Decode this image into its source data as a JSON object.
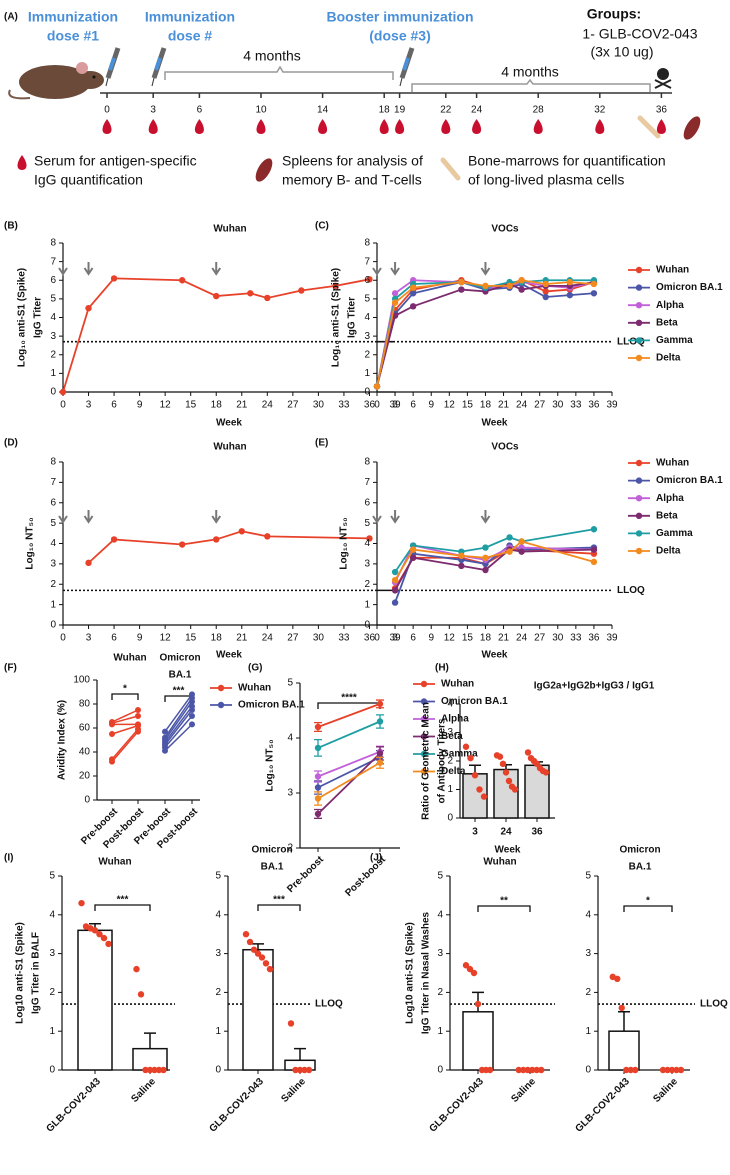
{
  "timeline": {
    "panel": "(A)",
    "doses": [
      [
        "Immunization",
        "dose #1"
      ],
      [
        "Immunization",
        "dose #"
      ],
      [
        "Booster immunization",
        "(dose #3)"
      ]
    ],
    "groups": [
      "Groups:",
      "1- GLB-COV2-043",
      "(3x 10 ug)"
    ],
    "intervals": [
      "4 months",
      "4 months"
    ],
    "weeks": [
      0,
      3,
      6,
      10,
      14,
      18,
      19,
      22,
      24,
      28,
      32,
      36
    ],
    "legend": [
      [
        "Serum  for antigen-specific",
        "IgG quantification"
      ],
      [
        "Spleens for analysis of",
        "memory B- and T-cells"
      ],
      [
        "Bone-marrows for quantification",
        "of long-lived plasma cells"
      ]
    ]
  },
  "chart_data": [
    {
      "type": "line",
      "panel": "(B)",
      "title": "Wuhan",
      "ylabel": [
        "Log₁₀ anti-S1 (Spike)",
        "IgG Titer"
      ],
      "xlabel": "Week",
      "x": [
        0,
        3,
        6,
        14,
        18,
        22,
        24,
        28,
        32,
        36
      ],
      "values": [
        0,
        4.5,
        6.1,
        6.0,
        5.15,
        5.3,
        5.05,
        5.45,
        5.7,
        6.05
      ],
      "color": "#e8412a",
      "xlim": [
        0,
        39
      ],
      "ylim": [
        0,
        8
      ],
      "xticks": [
        0,
        3,
        6,
        9,
        12,
        15,
        18,
        21,
        24,
        27,
        30,
        33,
        36,
        39
      ],
      "yticks": [
        0,
        1,
        2,
        3,
        4,
        5,
        6,
        7,
        8
      ],
      "lloq": 2.7,
      "arrows": [
        0,
        3,
        18
      ]
    },
    {
      "type": "line",
      "panel": "(C)",
      "title": "VOCs",
      "ylabel": [
        "Log₁₀ anti-S1 (Spike)",
        "IgG Titer"
      ],
      "xlabel": "Week",
      "x": [
        0,
        3,
        6,
        14,
        18,
        22,
        24,
        28,
        32,
        36
      ],
      "series": [
        {
          "name": "Wuhan",
          "color": "#e8412a",
          "values": [
            0.3,
            4.4,
            5.5,
            6.0,
            5.6,
            5.8,
            6.0,
            5.4,
            5.5,
            5.9
          ]
        },
        {
          "name": "Omicron BA.1",
          "color": "#4b56a8",
          "values": [
            0.3,
            4.2,
            5.3,
            5.9,
            5.5,
            5.6,
            5.8,
            5.1,
            5.2,
            5.3
          ]
        },
        {
          "name": "Alpha",
          "color": "#c160d8",
          "values": [
            0.3,
            5.3,
            6.0,
            5.9,
            5.6,
            5.7,
            5.9,
            5.7,
            5.6,
            5.9
          ]
        },
        {
          "name": "Beta",
          "color": "#7d2b6f",
          "values": [
            0.3,
            4.1,
            4.6,
            5.5,
            5.4,
            5.8,
            5.5,
            5.7,
            5.7,
            5.9
          ]
        },
        {
          "name": "Gamma",
          "color": "#1e9ea3",
          "values": [
            0.3,
            5.0,
            5.8,
            5.9,
            5.6,
            5.9,
            5.9,
            6.0,
            6.0,
            6.0
          ]
        },
        {
          "name": "Delta",
          "color": "#f28a1e",
          "values": [
            0.3,
            4.8,
            5.6,
            5.9,
            5.7,
            5.7,
            6.0,
            5.8,
            5.9,
            5.8
          ]
        }
      ],
      "xlim": [
        0,
        39
      ],
      "ylim": [
        0,
        8
      ],
      "xticks": [
        0,
        3,
        6,
        9,
        12,
        15,
        18,
        21,
        24,
        27,
        30,
        33,
        36,
        39
      ],
      "yticks": [
        0,
        1,
        2,
        3,
        4,
        5,
        6,
        7,
        8
      ],
      "lloq": 2.7,
      "lloq_label": "LLOQ",
      "arrows": [
        0,
        3,
        18
      ]
    },
    {
      "type": "line",
      "panel": "(D)",
      "title": "Wuhan",
      "ylabel": "Log₁₀ NT₅₀",
      "xlabel": "Week",
      "x": [
        3,
        6,
        14,
        18,
        21,
        24,
        36
      ],
      "values": [
        3.05,
        4.2,
        3.95,
        4.2,
        4.6,
        4.35,
        4.25
      ],
      "color": "#e8412a",
      "xlim": [
        0,
        39
      ],
      "ylim": [
        0,
        8
      ],
      "xticks": [
        0,
        3,
        6,
        9,
        12,
        15,
        18,
        21,
        24,
        27,
        30,
        33,
        36,
        39
      ],
      "yticks": [
        0,
        1,
        2,
        3,
        4,
        5,
        6,
        7,
        8
      ],
      "lloq": 1.7,
      "arrows": [
        0,
        3,
        18
      ]
    },
    {
      "type": "line",
      "panel": "(E)",
      "title": "VOCs",
      "ylabel": "Log₁₀ NT₅₀",
      "xlabel": "Week",
      "x": [
        3,
        6,
        14,
        18,
        22,
        24,
        36
      ],
      "series": [
        {
          "name": "Wuhan",
          "color": "#e8412a",
          "values": [
            1.8,
            3.3,
            3.3,
            3.0,
            3.7,
            3.7,
            3.5
          ]
        },
        {
          "name": "Omicron BA.1",
          "color": "#4b56a8",
          "values": [
            1.1,
            3.5,
            3.2,
            3.0,
            3.9,
            3.7,
            3.8
          ]
        },
        {
          "name": "Alpha",
          "color": "#c160d8",
          "values": [
            2.1,
            3.9,
            3.4,
            3.2,
            3.8,
            3.8,
            3.7
          ]
        },
        {
          "name": "Beta",
          "color": "#7d2b6f",
          "values": [
            1.7,
            3.3,
            2.9,
            2.7,
            3.7,
            3.6,
            3.7
          ]
        },
        {
          "name": "Gamma",
          "color": "#1e9ea3",
          "values": [
            2.6,
            3.9,
            3.6,
            3.8,
            4.3,
            4.1,
            4.7
          ]
        },
        {
          "name": "Delta",
          "color": "#f28a1e",
          "values": [
            2.2,
            3.7,
            3.4,
            3.3,
            3.6,
            4.1,
            3.1
          ]
        }
      ],
      "xlim": [
        0,
        39
      ],
      "ylim": [
        0,
        8
      ],
      "xticks": [
        0,
        3,
        6,
        9,
        12,
        15,
        18,
        21,
        24,
        27,
        30,
        33,
        36,
        39
      ],
      "yticks": [
        0,
        1,
        2,
        3,
        4,
        5,
        6,
        7,
        8
      ],
      "lloq": 1.7,
      "lloq_label": "LLOQ",
      "arrows": [
        0,
        3,
        18
      ]
    },
    {
      "type": "slope",
      "panel": "(F)",
      "ylabel": "Avidity Index (%)",
      "groups": [
        [
          "Wuhan"
        ],
        [
          "Omicron",
          "BA.1"
        ]
      ],
      "significance": [
        "*",
        "***"
      ],
      "categories": [
        "Pre-boost",
        "Post-boost",
        "Pre-boost",
        "Post-boost"
      ],
      "series": [
        {
          "name": "Wuhan",
          "color": "#e8412a",
          "values": [
            [
              32,
              57
            ],
            [
              34,
              59
            ],
            [
              55,
              62
            ],
            [
              63,
              63
            ],
            [
              64,
              70
            ],
            [
              65,
              75
            ]
          ]
        },
        {
          "name": "Omicron BA.1",
          "color": "#4b56a8",
          "values": [
            [
              41,
              63
            ],
            [
              44,
              70
            ],
            [
              46,
              75
            ],
            [
              48,
              78
            ],
            [
              50,
              82
            ],
            [
              52,
              85
            ],
            [
              57,
              88
            ]
          ]
        }
      ],
      "ylim": [
        0,
        100
      ],
      "yticks": [
        0,
        20,
        40,
        60,
        80,
        100
      ]
    },
    {
      "type": "line",
      "panel": "(G)",
      "ylabel": "Log₁₀ NT₅₀",
      "significance": [
        "****"
      ],
      "categories": [
        "Pre-boost",
        "Post-boost"
      ],
      "series": [
        {
          "name": "Wuhan",
          "color": "#e8412a",
          "values": [
            4.2,
            4.62
          ],
          "errors": [
            0.08,
            0.07
          ]
        },
        {
          "name": "Omicron BA.1",
          "color": "#4b56a8",
          "values": [
            3.1,
            3.65
          ],
          "errors": [
            0.12,
            0.12
          ]
        },
        {
          "name": "Alpha",
          "color": "#c160d8",
          "values": [
            3.3,
            3.75
          ],
          "errors": [
            0.1,
            0.1
          ]
        },
        {
          "name": "Beta",
          "color": "#7d2b6f",
          "values": [
            2.62,
            3.72
          ],
          "errors": [
            0.08,
            0.12
          ]
        },
        {
          "name": "Gamma",
          "color": "#1e9ea3",
          "values": [
            3.82,
            4.3
          ],
          "errors": [
            0.15,
            0.12
          ]
        },
        {
          "name": "Delta",
          "color": "#f28a1e",
          "values": [
            2.9,
            3.55
          ],
          "errors": [
            0.12,
            0.1
          ]
        }
      ],
      "ylim": [
        2,
        5
      ],
      "yticks": [
        2,
        3,
        4,
        5
      ]
    },
    {
      "type": "bar",
      "panel": "(H)",
      "title": "IgG2a+IgG2b+IgG3 / IgG1",
      "ylabel": [
        "Ratio of Geometric Mean",
        "of Antibody Titers"
      ],
      "xlabel": "Week",
      "categories": [
        "3",
        "24",
        "36"
      ],
      "values": [
        1.55,
        1.7,
        1.85
      ],
      "errors": [
        0.3,
        0.17,
        0.12
      ],
      "points": [
        [
          2.5,
          2.1,
          1.5,
          1.0,
          0.75
        ],
        [
          2.2,
          2.15,
          1.9,
          1.6,
          1.3,
          1.1,
          1.0
        ],
        [
          2.3,
          2.1,
          2.0,
          1.9,
          1.75,
          1.65,
          1.6
        ]
      ],
      "color": "#d9d9d9",
      "point_color": "#e8412a",
      "ylim": [
        0,
        4
      ],
      "yticks": [
        0,
        1,
        2,
        3,
        4
      ]
    },
    {
      "type": "bar",
      "panel": "(I)",
      "title": [
        "Wuhan"
      ],
      "ylabel": [
        "Log10  anti-S1 (Spike)",
        "IgG Titer in BALF"
      ],
      "categories": [
        "GLB-COV2-043",
        "Saline"
      ],
      "values": [
        3.6,
        0.55
      ],
      "errors": [
        0.17,
        0.4
      ],
      "points": [
        [
          4.3,
          3.7,
          3.65,
          3.6,
          3.5,
          3.4,
          3.25
        ],
        [
          2.6,
          1.95,
          0,
          0,
          0,
          0,
          0
        ]
      ],
      "color": "#ffffff",
      "point_color": "#e8412a",
      "ylim": [
        0,
        5
      ],
      "yticks": [
        0,
        1,
        2,
        3,
        4,
        5
      ],
      "lloq": 1.7,
      "significance": [
        "***"
      ]
    },
    {
      "type": "bar",
      "title": [
        "Omicron",
        "BA.1"
      ],
      "categories": [
        "GLB-COV2-043",
        "Saline"
      ],
      "values": [
        3.1,
        0.25
      ],
      "errors": [
        0.15,
        0.3
      ],
      "points": [
        [
          3.5,
          3.3,
          3.1,
          3.0,
          2.9,
          2.75,
          2.6
        ],
        [
          1.2,
          0,
          0,
          0,
          0
        ]
      ],
      "color": "#ffffff",
      "point_color": "#e8412a",
      "ylim": [
        0,
        5
      ],
      "yticks": [
        0,
        1,
        2,
        3,
        4,
        5
      ],
      "lloq": 1.7,
      "lloq_label": "LLOQ",
      "significance": [
        "***"
      ]
    },
    {
      "type": "bar",
      "panel": "(J)",
      "title": [
        "Wuhan"
      ],
      "ylabel": [
        "Log10  anti-S1 (Spike)",
        "IgG Titer in Nasal Washes"
      ],
      "categories": [
        "GLB-COV2-043",
        "Saline"
      ],
      "values": [
        1.5,
        0
      ],
      "errors": [
        0.5,
        0
      ],
      "points": [
        [
          2.7,
          2.6,
          2.5,
          1.7,
          0,
          0,
          0
        ],
        [
          0,
          0,
          0,
          0,
          0,
          0
        ]
      ],
      "color": "#ffffff",
      "point_color": "#e8412a",
      "ylim": [
        0,
        5
      ],
      "yticks": [
        0,
        1,
        2,
        3,
        4,
        5
      ],
      "lloq": 1.7,
      "significance": [
        "**"
      ]
    },
    {
      "type": "bar",
      "title": [
        "Omicron",
        "BA.1"
      ],
      "categories": [
        "GLB-COV2-043",
        "Saline"
      ],
      "values": [
        1.0,
        0
      ],
      "errors": [
        0.5,
        0
      ],
      "points": [
        [
          2.4,
          2.35,
          1.6,
          0,
          0,
          0
        ],
        [
          0,
          0,
          0,
          0,
          0
        ]
      ],
      "color": "#ffffff",
      "point_color": "#e8412a",
      "ylim": [
        0,
        5
      ],
      "yticks": [
        0,
        1,
        2,
        3,
        4,
        5
      ],
      "lloq": 1.7,
      "lloq_label": "LLOQ",
      "significance": [
        "*"
      ]
    }
  ]
}
